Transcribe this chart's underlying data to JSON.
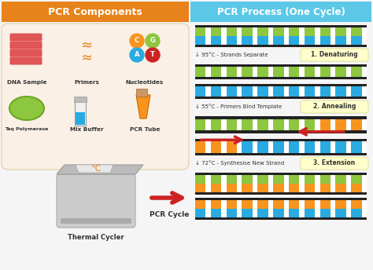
{
  "bg_color": "#f5f5f5",
  "left_panel": {
    "header_bg": "#E8821A",
    "header_text": "PCR Components",
    "header_text_color": "#ffffff",
    "body_bg": "#FAF0E6",
    "body_border": "#E8D5B0",
    "footer_text": "Thermal Cycler",
    "pcr_cycle_text": "PCR Cycle"
  },
  "right_panel": {
    "header_bg": "#5BC8E8",
    "header_text": "PCR Process (One Cycle)",
    "header_text_color": "#ffffff",
    "steps": [
      {
        "temp": "95°C",
        "desc": "Strands Separate",
        "label": "1. Denaturing"
      },
      {
        "temp": "55°C",
        "desc": "Primers Bind Template",
        "label": "2. Annealing"
      },
      {
        "temp": "72°C",
        "desc": "Synthesise New Strand",
        "label": "3. Extension"
      }
    ],
    "label_bg": "#FFFFCC",
    "label_border": "#DDDD88",
    "label_text_color": "#333333"
  },
  "dna_colors": {
    "dark": "#222222",
    "green": "#8DC63F",
    "blue": "#29ABE2",
    "orange": "#F7941D",
    "red": "#CC2222",
    "white": "#ffffff"
  },
  "nuc_colors": [
    "#F7941D",
    "#8DC63F",
    "#29ABE2",
    "#CC2222"
  ],
  "nuc_labels": [
    "C",
    "G",
    "A",
    "T"
  ],
  "dna_red": "#E05555",
  "green_blob": "#8DC63F",
  "green_blob_edge": "#6AA821"
}
